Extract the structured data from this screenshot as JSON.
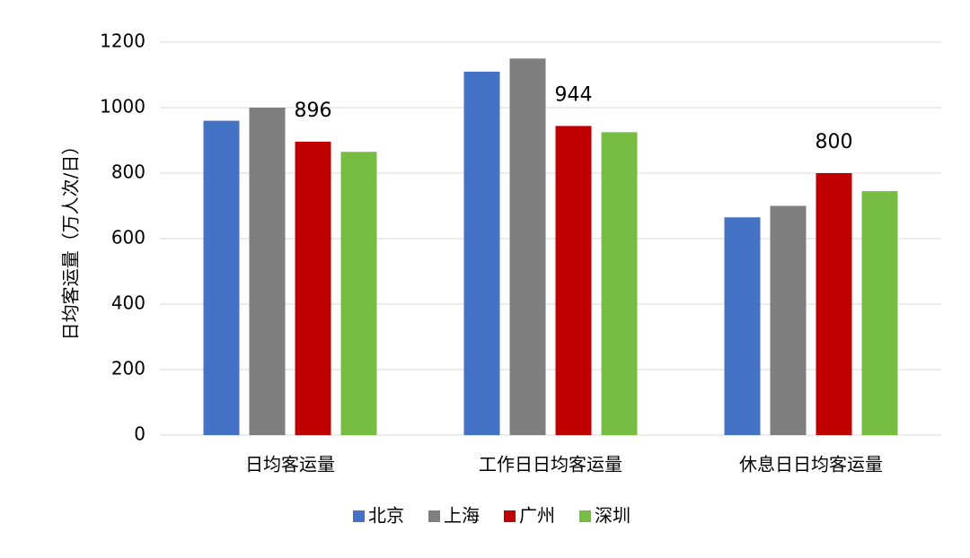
{
  "chart_data": {
    "type": "bar",
    "y_label": "日均客运量（万人次/日）",
    "categories": [
      "日均客运量",
      "工作日日均客运量",
      "休息日日均客运量"
    ],
    "series": [
      {
        "name": "北京",
        "color": "#4472c4",
        "values": [
          960,
          1110,
          665
        ]
      },
      {
        "name": "上海",
        "color": "#7f7f7f",
        "values": [
          1000,
          1150,
          700
        ]
      },
      {
        "name": "广州",
        "color": "#c00000",
        "values": [
          896,
          944,
          800
        ],
        "show_value_labels": true
      },
      {
        "name": "深圳",
        "color": "#77bc43",
        "values": [
          865,
          925,
          745
        ]
      }
    ],
    "ylim": [
      0,
      1200
    ],
    "yticks": [
      0,
      200,
      400,
      600,
      800,
      1000,
      1200
    ],
    "grid": true,
    "legend": "bottom"
  }
}
